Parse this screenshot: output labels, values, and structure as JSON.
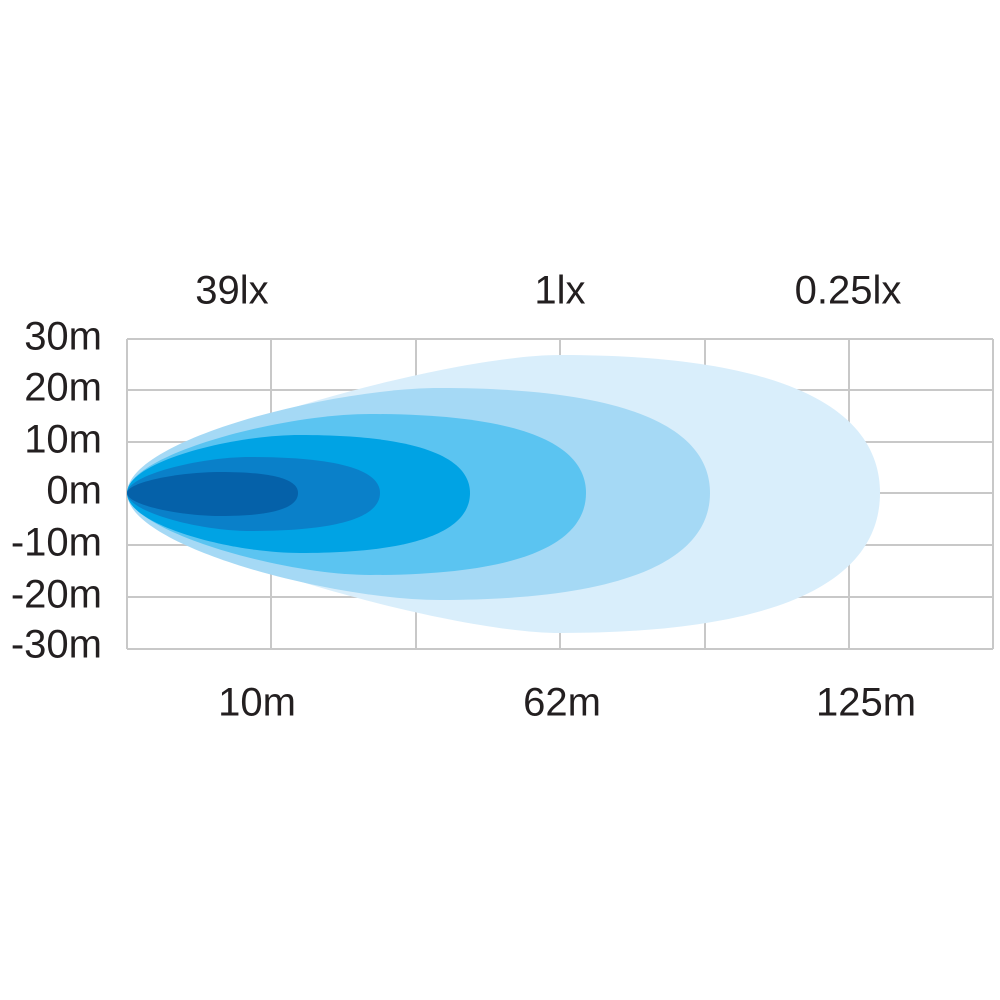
{
  "y_labels": [
    "30m",
    "20m",
    "10m",
    "0m",
    "-10m",
    "-20m",
    "-30m"
  ],
  "top_labels": [
    "39lx",
    "1lx",
    "0.25lx"
  ],
  "bottom_labels": [
    "10m",
    "62m",
    "125m"
  ]
}
